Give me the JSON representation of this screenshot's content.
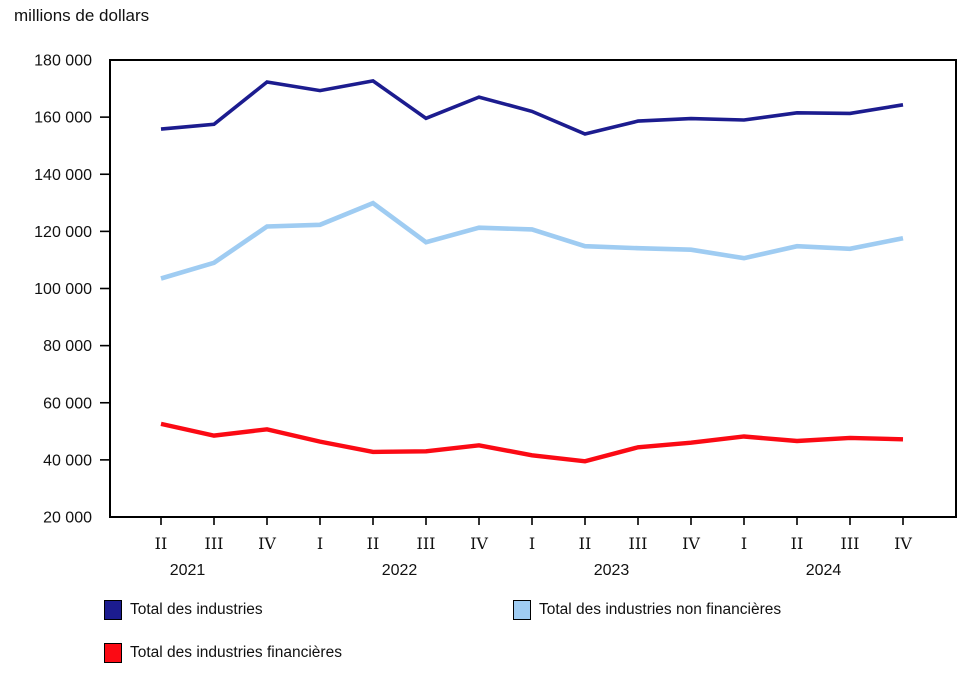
{
  "title": "millions de dollars",
  "colors": {
    "axis": "#000000",
    "text": "#111111",
    "total_industries": "#1c1c8f",
    "non_financial": "#9fccf2",
    "financial": "#fb0a14"
  },
  "legend": [
    {
      "label": "Total des industries",
      "color": "#1c1c8f"
    },
    {
      "label": "Total des industries non financières",
      "color": "#9fccf2"
    },
    {
      "label": "Total des industries financières",
      "color": "#fb0a14"
    }
  ],
  "chart_data": {
    "type": "line",
    "title": "millions de dollars",
    "xlabel": "",
    "ylabel": "millions de dollars",
    "grid": false,
    "legend_position": "bottom",
    "ylim": [
      20000,
      180000
    ],
    "y_tick_step": 20000,
    "y_tick_labels": [
      "180 000",
      "160 000",
      "140 000",
      "120 000",
      "100 000",
      "80 000",
      "60 000",
      "40 000",
      "20 000"
    ],
    "x_tick_labels": [
      "II",
      "III",
      "IV",
      "I",
      "II",
      "III",
      "IV",
      "I",
      "II",
      "III",
      "IV",
      "I",
      "II",
      "III",
      "IV"
    ],
    "years": [
      {
        "label": "2021",
        "center_index": 0.5
      },
      {
        "label": "2022",
        "center_index": 4.5
      },
      {
        "label": "2023",
        "center_index": 8.5
      },
      {
        "label": "2024",
        "center_index": 12.5
      }
    ],
    "series": [
      {
        "name": "Total des industries",
        "color": "#1c1c8f",
        "values": [
          155800,
          157500,
          172300,
          169300,
          172700,
          159600,
          167000,
          162000,
          154100,
          158600,
          159500,
          159000,
          161500,
          161300,
          164300
        ]
      },
      {
        "name": "Total des industries non financières",
        "color": "#9fccf2",
        "values": [
          103500,
          109000,
          121700,
          122300,
          129900,
          116200,
          121300,
          120700,
          114800,
          114100,
          113600,
          110600,
          114800,
          113900,
          117600
        ]
      },
      {
        "name": "Total des industries financières",
        "color": "#fb0a14",
        "values": [
          52600,
          48500,
          50700,
          46400,
          42800,
          43000,
          45100,
          41600,
          39500,
          44400,
          46000,
          48200,
          46600,
          47700,
          47200
        ]
      }
    ]
  }
}
